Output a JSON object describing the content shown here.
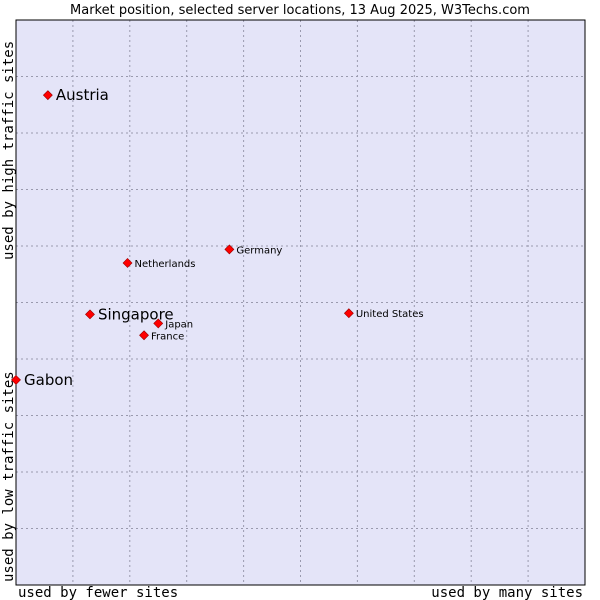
{
  "chart_data": {
    "type": "scatter",
    "title": "Market position, selected server locations, 13 Aug 2025, W3Techs.com",
    "xlabel_left": "used by fewer sites",
    "xlabel_right": "used by many sites",
    "ylabel_bottom": "used by low traffic sites",
    "ylabel_top": "used by high traffic sites",
    "xlim": [
      0,
      100
    ],
    "ylim": [
      0,
      100
    ],
    "grid": true,
    "colors": {
      "plot_bg": "#e4e4f8",
      "grid": "#9a9aae",
      "border": "#000000",
      "marker": "#ff0000",
      "marker_edge": "#990000"
    },
    "points": [
      {
        "name": "Austria",
        "x": 5.6,
        "y": 86.7,
        "highlight": true
      },
      {
        "name": "Germany",
        "x": 37.5,
        "y": 59.4,
        "highlight": false
      },
      {
        "name": "Netherlands",
        "x": 19.6,
        "y": 57.0,
        "highlight": false
      },
      {
        "name": "Singapore",
        "x": 13.0,
        "y": 47.9,
        "highlight": true
      },
      {
        "name": "United States",
        "x": 58.5,
        "y": 48.1,
        "highlight": false
      },
      {
        "name": "Japan",
        "x": 25.0,
        "y": 46.3,
        "highlight": false
      },
      {
        "name": "France",
        "x": 22.5,
        "y": 44.2,
        "highlight": false
      },
      {
        "name": "Gabon",
        "x": 0.0,
        "y": 36.3,
        "highlight": true
      }
    ]
  }
}
